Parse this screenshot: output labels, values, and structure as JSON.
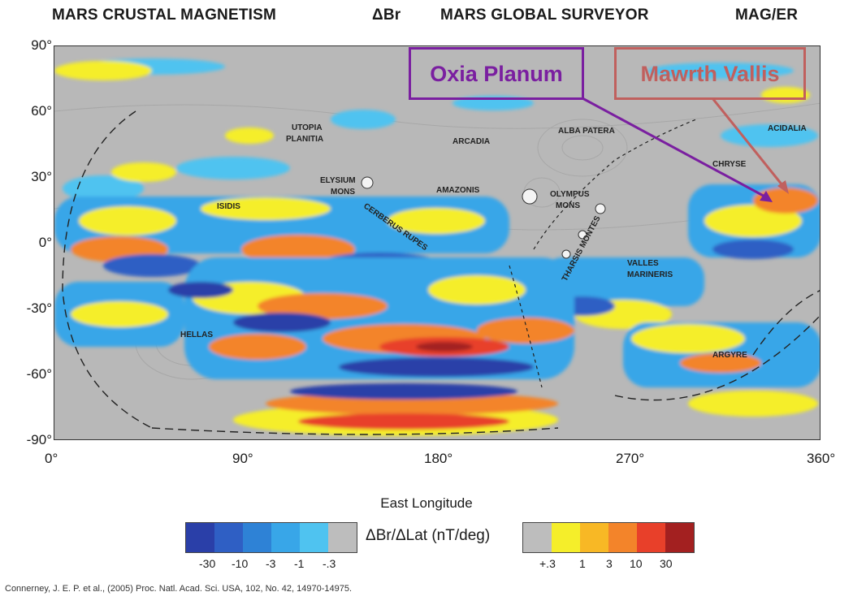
{
  "header": {
    "left": "MARS CRUSTAL MAGNETISM",
    "delta": "ΔBr",
    "mid": "MARS GLOBAL SURVEYOR",
    "right": "MAG/ER"
  },
  "callouts": {
    "oxia": "Oxia Planum",
    "mawrth": "Mawrth Vallis",
    "oxia_color": "#7a1fa0",
    "mawrth_color": "#c0605e"
  },
  "axes": {
    "y_ticks": [
      "90°",
      "60°",
      "30°",
      "0°",
      "-30°",
      "-60°",
      "-90°"
    ],
    "x_ticks": [
      "0°",
      "90°",
      "180°",
      "270°",
      "360°"
    ],
    "x_label": "East Longitude"
  },
  "regions": {
    "utopia": "UTOPIA",
    "planitia": "PLANITIA",
    "arcadia": "ARCADIA",
    "alba_patera": "ALBA PATERA",
    "acidalia": "ACIDALIA",
    "elysium": "ELYSIUM",
    "mons1": "MONS",
    "amazonis": "AMAZONIS",
    "olympus": "OLYMPUS",
    "mons2": "MONS",
    "chryse": "CHRYSE",
    "isidis": "ISIDIS",
    "cerberus": "CERBERUS RUPES",
    "tharsis": "THARSIS MONTES",
    "valles": "VALLES",
    "marineris": "MARINERIS",
    "hellas": "HELLAS",
    "argyre": "ARGYRE"
  },
  "colorbar": {
    "label": "ΔBr/ΔLat (nT/deg)",
    "neg_ticks": [
      "-30",
      "-10",
      "-3",
      "-1",
      "-.3"
    ],
    "pos_ticks": [
      "+.3",
      "1",
      "3",
      "10",
      "30"
    ],
    "neg_colors": [
      "#2a3fa8",
      "#2f5fc4",
      "#2e82d6",
      "#38a6e8",
      "#4fc3f0",
      "#bdbdbd"
    ],
    "pos_colors": [
      "#bdbdbd",
      "#f5ee2a",
      "#f8b825",
      "#f3842a",
      "#e8402a",
      "#a32020"
    ]
  },
  "citation": "Connerney, J. E. P. et al., (2005) Proc. Natl. Acad. Sci. USA, 102, No. 42, 14970-14975."
}
